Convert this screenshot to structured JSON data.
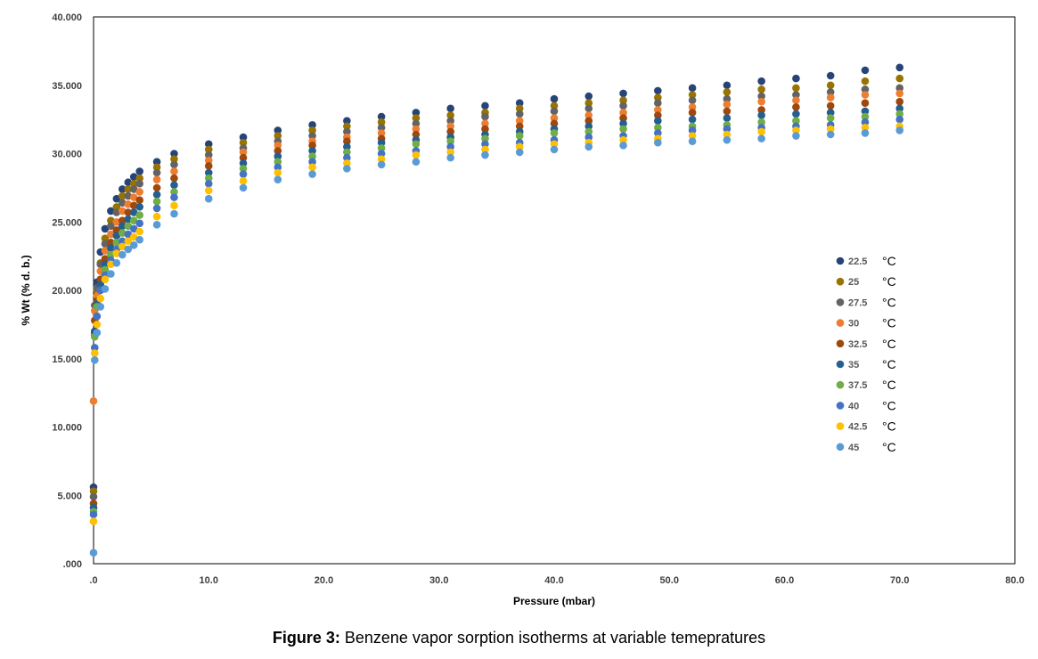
{
  "caption": {
    "label": "Figure 3:",
    "text": " Benzene vapor sorption isotherms at variable temepratures"
  },
  "chart_data": {
    "type": "scatter",
    "title": "",
    "xlabel": "Pressure (mbar)",
    "ylabel": "% Wt (% d. b.)",
    "xlim": [
      0,
      80
    ],
    "ylim": [
      0,
      40
    ],
    "xticks": [
      ".0",
      "10.0",
      "20.0",
      "30.0",
      "40.0",
      "50.0",
      "60.0",
      "70.0",
      "80.0"
    ],
    "yticks": [
      ".000",
      "5.000",
      "10.000",
      "15.000",
      "20.000",
      "25.000",
      "30.000",
      "35.000",
      "40.000"
    ],
    "legend_position": "right",
    "legend_unit": "°C",
    "x": [
      0.0,
      0.1,
      0.3,
      0.6,
      1.0,
      1.5,
      2.0,
      2.5,
      3.0,
      3.5,
      4.0,
      5.5,
      7.0,
      10.0,
      13.0,
      16.0,
      19.0,
      22.0,
      25.0,
      28.0,
      31.0,
      34.0,
      37.0,
      40.0,
      43.0,
      46.0,
      49.0,
      52.0,
      55.0,
      58.0,
      61.0,
      64.0,
      67.0,
      70.0
    ],
    "series": [
      {
        "name": "22.5",
        "color": "#264478",
        "values": [
          5.6,
          17.0,
          20.6,
          22.8,
          24.5,
          25.8,
          26.7,
          27.4,
          27.9,
          28.3,
          28.7,
          29.4,
          30.0,
          30.7,
          31.2,
          31.7,
          32.1,
          32.4,
          32.7,
          33.0,
          33.3,
          33.5,
          33.7,
          34.0,
          34.2,
          34.4,
          34.6,
          34.8,
          35.0,
          35.3,
          35.5,
          35.7,
          36.1,
          36.3
        ]
      },
      {
        "name": "25",
        "color": "#997300",
        "values": [
          5.3,
          16.7,
          20.0,
          22.0,
          23.8,
          25.1,
          26.1,
          26.9,
          27.4,
          27.8,
          28.2,
          29.0,
          29.6,
          30.3,
          30.8,
          31.3,
          31.7,
          32.0,
          32.3,
          32.6,
          32.8,
          33.0,
          33.3,
          33.5,
          33.7,
          33.9,
          34.1,
          34.3,
          34.5,
          34.7,
          34.8,
          35.0,
          35.3,
          35.5
        ]
      },
      {
        "name": "27.5",
        "color": "#636363",
        "values": [
          4.9,
          18.9,
          20.2,
          21.9,
          23.4,
          24.7,
          25.7,
          26.4,
          26.9,
          27.4,
          27.8,
          28.6,
          29.2,
          29.9,
          30.4,
          30.9,
          31.3,
          31.6,
          31.9,
          32.2,
          32.4,
          32.7,
          32.9,
          33.1,
          33.3,
          33.5,
          33.7,
          33.9,
          34.0,
          34.2,
          34.3,
          34.5,
          34.7,
          34.8
        ]
      },
      {
        "name": "30",
        "color": "#ed7d31",
        "values": [
          11.9,
          18.5,
          19.6,
          21.4,
          22.9,
          24.1,
          25.0,
          25.8,
          26.3,
          26.8,
          27.2,
          28.1,
          28.7,
          29.5,
          30.1,
          30.6,
          30.9,
          31.2,
          31.5,
          31.8,
          32.0,
          32.2,
          32.4,
          32.6,
          32.8,
          33.0,
          33.2,
          33.4,
          33.6,
          33.8,
          33.9,
          34.1,
          34.3,
          34.4
        ]
      },
      {
        "name": "32.5",
        "color": "#9e480e",
        "values": [
          4.4,
          17.8,
          19.2,
          20.8,
          22.3,
          23.5,
          24.4,
          25.1,
          25.7,
          26.2,
          26.6,
          27.5,
          28.2,
          29.1,
          29.7,
          30.2,
          30.6,
          30.9,
          31.1,
          31.4,
          31.6,
          31.8,
          32.0,
          32.2,
          32.4,
          32.6,
          32.8,
          33.0,
          33.1,
          33.2,
          33.4,
          33.5,
          33.7,
          33.8
        ]
      },
      {
        "name": "35",
        "color": "#255e91",
        "values": [
          4.1,
          16.9,
          19.0,
          20.4,
          21.9,
          23.1,
          24.0,
          24.7,
          25.2,
          25.7,
          26.1,
          27.0,
          27.7,
          28.6,
          29.3,
          29.8,
          30.2,
          30.5,
          30.8,
          31.0,
          31.2,
          31.4,
          31.6,
          31.8,
          32.0,
          32.2,
          32.4,
          32.5,
          32.6,
          32.8,
          32.9,
          33.0,
          33.1,
          33.3
        ]
      },
      {
        "name": "37.5",
        "color": "#70ad47",
        "values": [
          3.8,
          16.6,
          18.8,
          20.0,
          21.5,
          22.6,
          23.5,
          24.2,
          24.7,
          25.1,
          25.5,
          26.5,
          27.2,
          28.2,
          28.9,
          29.4,
          29.8,
          30.1,
          30.4,
          30.7,
          30.9,
          31.1,
          31.3,
          31.5,
          31.6,
          31.8,
          31.9,
          32.0,
          32.1,
          32.3,
          32.4,
          32.6,
          32.7,
          32.9
        ]
      },
      {
        "name": "40",
        "color": "#4472c4",
        "values": [
          3.6,
          15.8,
          18.1,
          20.0,
          21.1,
          22.2,
          23.0,
          23.6,
          24.1,
          24.5,
          24.9,
          26.0,
          26.8,
          27.8,
          28.5,
          29.0,
          29.4,
          29.7,
          30.0,
          30.2,
          30.5,
          30.7,
          30.8,
          31.0,
          31.2,
          31.3,
          31.5,
          31.7,
          31.8,
          31.9,
          32.0,
          32.1,
          32.3,
          32.5
        ]
      },
      {
        "name": "42.5",
        "color": "#ffc000",
        "values": [
          3.1,
          15.4,
          17.5,
          19.4,
          20.8,
          21.9,
          22.7,
          23.2,
          23.6,
          23.9,
          24.3,
          25.4,
          26.2,
          27.3,
          28.0,
          28.6,
          29.0,
          29.3,
          29.6,
          29.9,
          30.1,
          30.3,
          30.5,
          30.7,
          30.8,
          31.0,
          31.1,
          31.3,
          31.4,
          31.6,
          31.7,
          31.8,
          31.9,
          32.0
        ]
      },
      {
        "name": "45",
        "color": "#5b9bd5",
        "values": [
          0.8,
          14.9,
          16.9,
          18.8,
          20.1,
          21.2,
          22.0,
          22.6,
          23.0,
          23.3,
          23.7,
          24.8,
          25.6,
          26.7,
          27.5,
          28.1,
          28.5,
          28.9,
          29.2,
          29.4,
          29.7,
          29.9,
          30.1,
          30.3,
          30.5,
          30.6,
          30.8,
          30.9,
          31.0,
          31.1,
          31.3,
          31.4,
          31.5,
          31.7
        ]
      }
    ]
  }
}
